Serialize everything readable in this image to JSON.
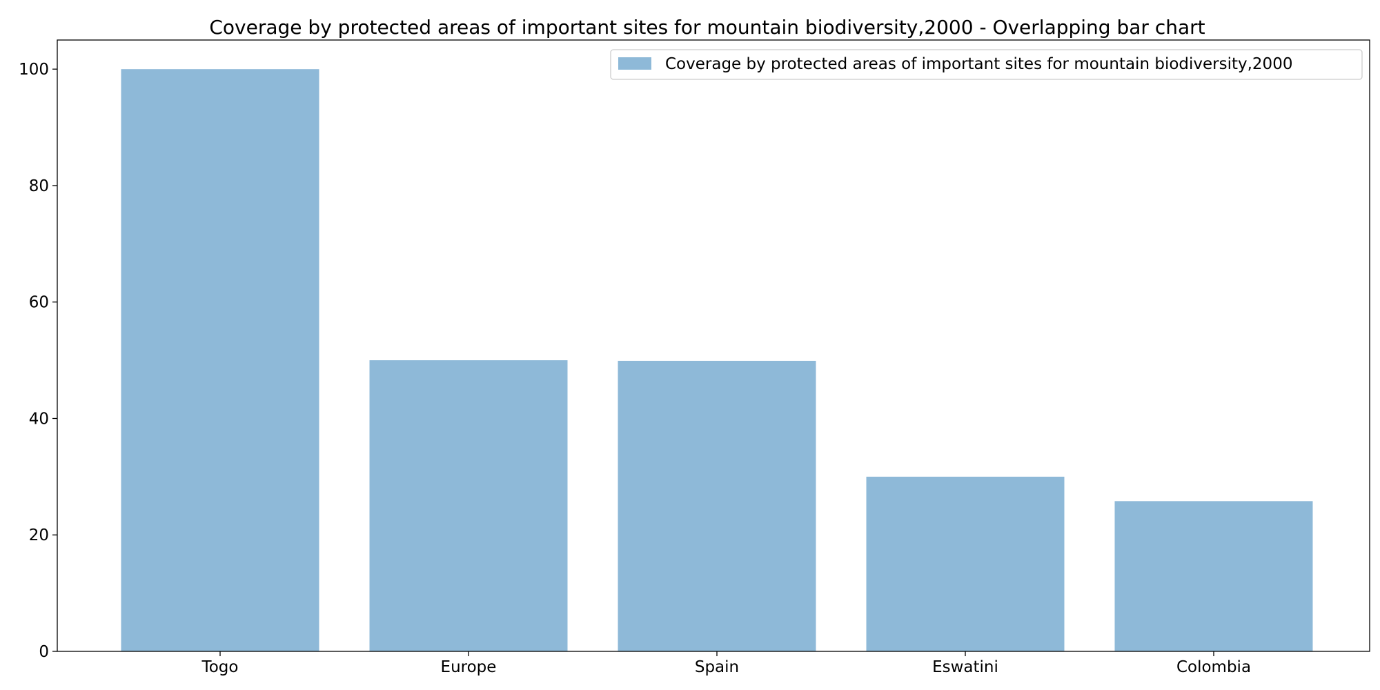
{
  "chart_data": {
    "type": "bar",
    "title": "Coverage by protected areas of important sites for mountain biodiversity,2000 - Overlapping bar chart",
    "xlabel": "",
    "ylabel": "",
    "categories": [
      "Togo",
      "Europe",
      "Spain",
      "Eswatini",
      "Colombia"
    ],
    "series": [
      {
        "name": "Coverage by protected areas of important sites for mountain biodiversity,2000",
        "values": [
          100,
          50,
          49.9,
          30,
          25.8
        ],
        "color": "#8eb9d8"
      }
    ],
    "ylim": [
      0,
      105
    ],
    "yticks": [
      "0",
      "20",
      "40",
      "60",
      "80",
      "100"
    ],
    "grid": false,
    "legend_position": "top-right"
  }
}
